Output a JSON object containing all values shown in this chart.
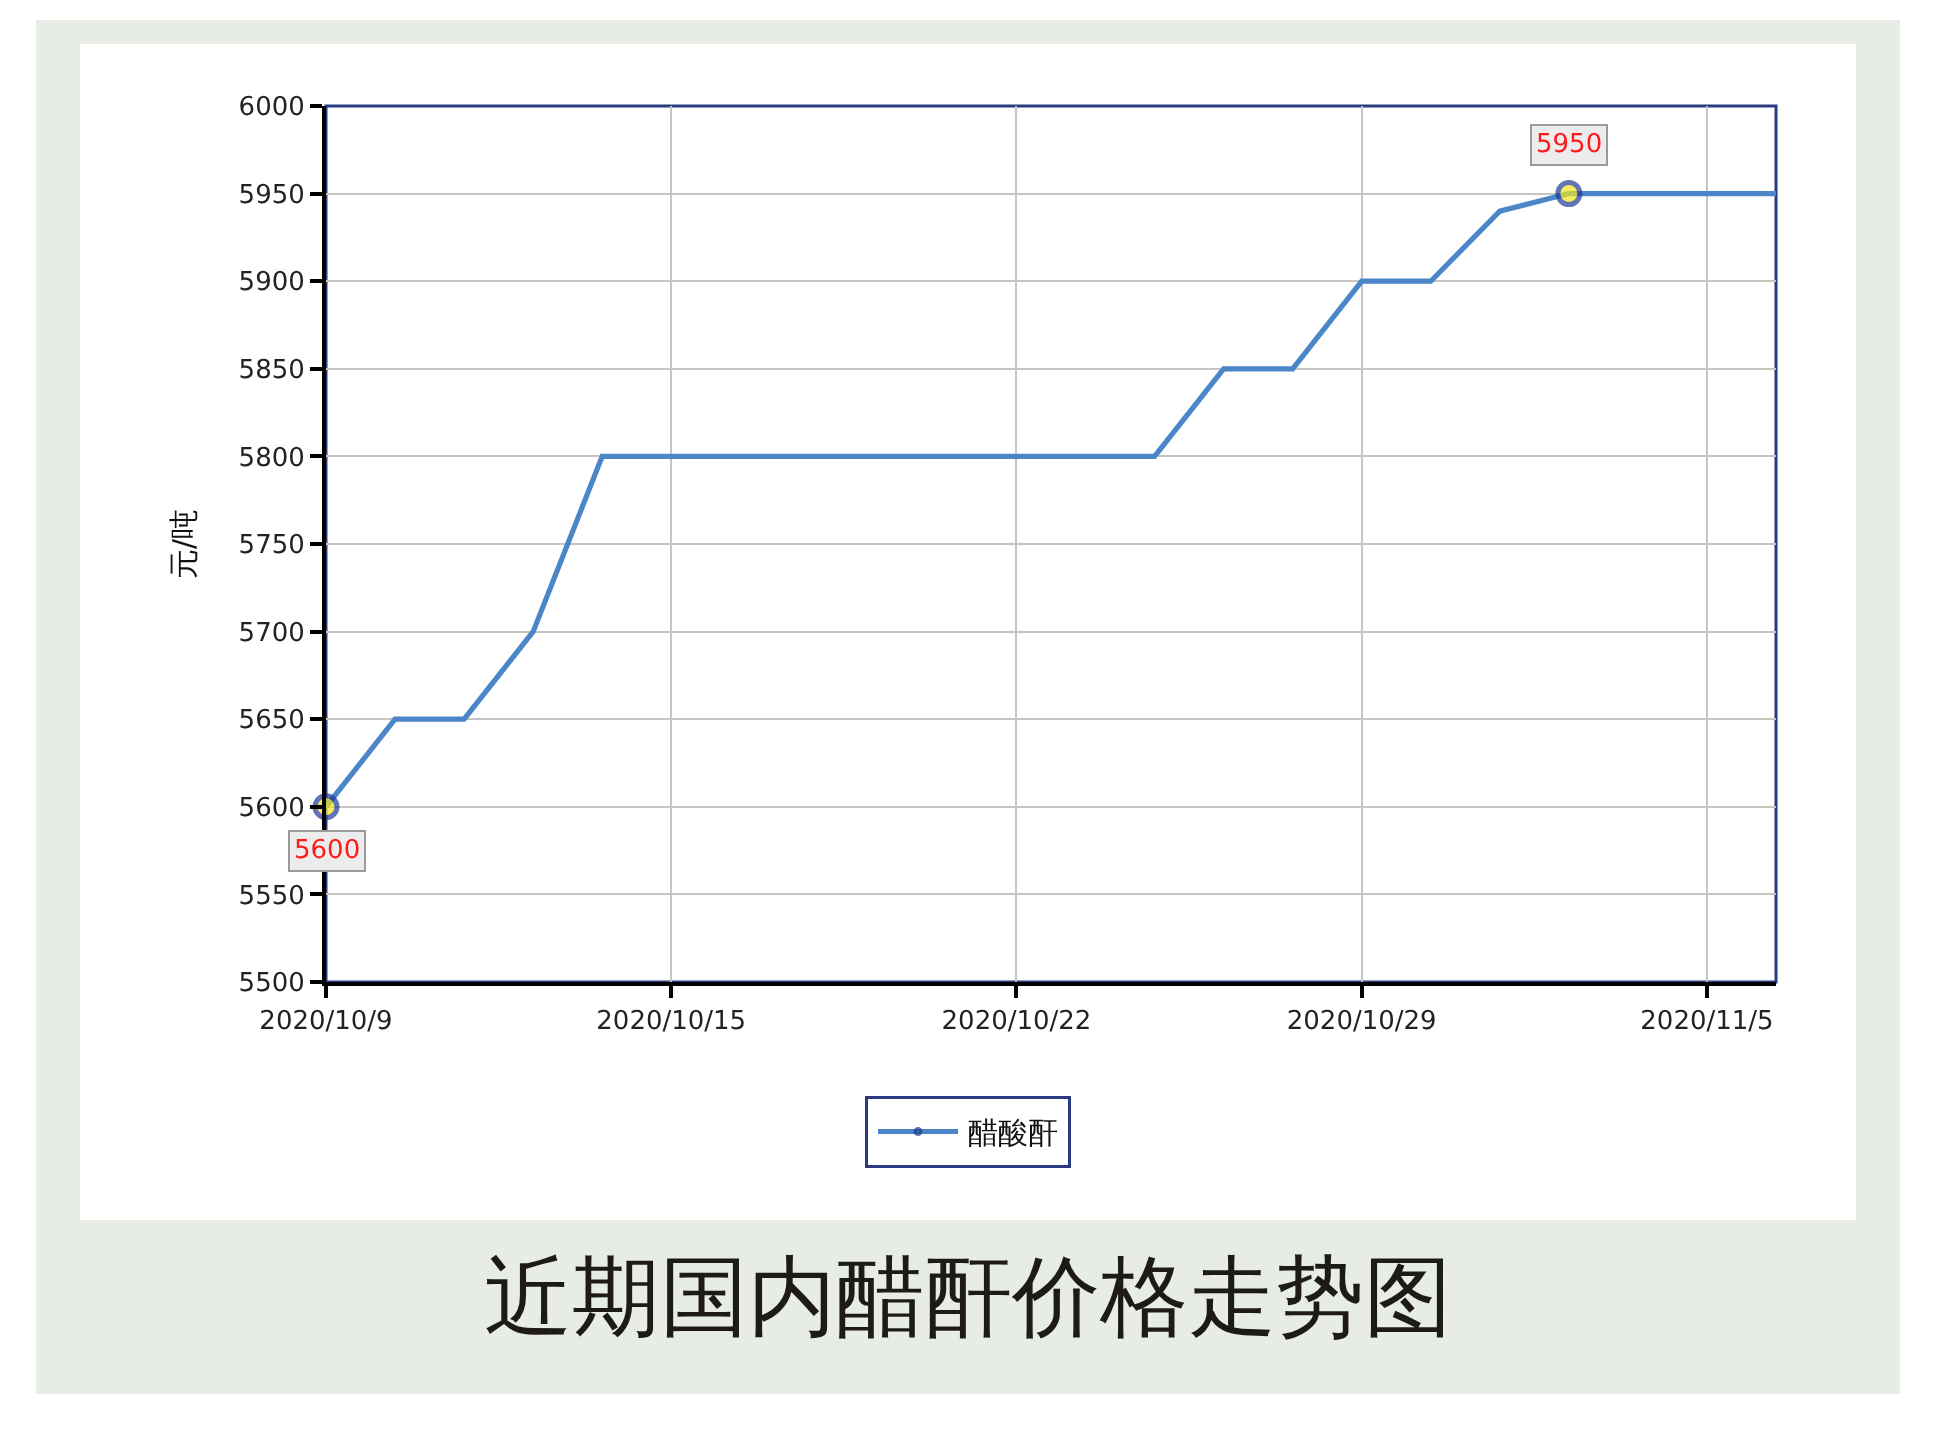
{
  "chart_data": {
    "type": "line",
    "title": "近期国内醋酐价格走势图",
    "ylabel": "元/吨",
    "categories": [
      "2020/10/9",
      null,
      null,
      null,
      null,
      "2020/10/15",
      null,
      null,
      null,
      null,
      "2020/10/22",
      null,
      null,
      null,
      null,
      "2020/10/29",
      null,
      null,
      null,
      null,
      "2020/11/5",
      null
    ],
    "series": [
      {
        "name": "醋酸酐",
        "color": "#4a86c8",
        "values": [
          5600,
          5650,
          5650,
          5700,
          5800,
          5800,
          5800,
          5800,
          5800,
          5800,
          5800,
          5800,
          5800,
          5850,
          5850,
          5900,
          5900,
          5940,
          5950,
          5950,
          5950,
          5950
        ],
        "value_labels": [
          "5600",
          null,
          null,
          null,
          null,
          null,
          null,
          null,
          null,
          null,
          null,
          null,
          null,
          null,
          null,
          null,
          null,
          null,
          "5950",
          null,
          null,
          null
        ]
      }
    ],
    "ylim": [
      5500,
      6000
    ],
    "yticks": [
      5500,
      5550,
      5600,
      5650,
      5700,
      5750,
      5800,
      5850,
      5900,
      5950,
      6000
    ],
    "grid": true,
    "legend": "bottom",
    "line_style": "solid"
  }
}
